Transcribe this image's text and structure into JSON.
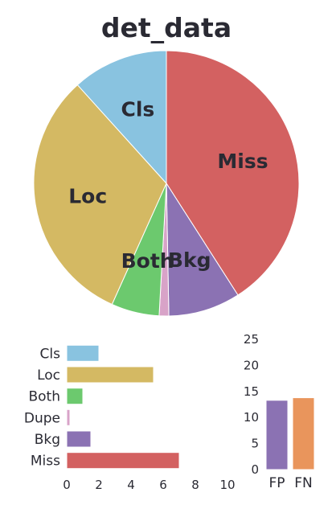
{
  "chart_data": [
    {
      "type": "pie",
      "title": "det_data",
      "categories": [
        "Miss",
        "Bkg",
        "Dupe",
        "Both",
        "Loc",
        "Cls"
      ],
      "values": [
        7.0,
        1.5,
        0.2,
        1.0,
        5.4,
        2.0
      ],
      "colors": [
        "#d36161",
        "#8b72b3",
        "#d8a3c8",
        "#6cc96e",
        "#d4b963",
        "#89c3e0"
      ],
      "slice_labels": [
        "Miss",
        "Bkg",
        "",
        "Both",
        "Loc",
        "Cls"
      ],
      "start_angle_deg": 90,
      "direction": "clockwise"
    },
    {
      "type": "bar",
      "orientation": "horizontal",
      "categories": [
        "Cls",
        "Loc",
        "Both",
        "Dupe",
        "Bkg",
        "Miss"
      ],
      "values": [
        2.0,
        5.4,
        1.0,
        0.2,
        1.5,
        7.0
      ],
      "colors": [
        "#89c3e0",
        "#d4b963",
        "#6cc96e",
        "#d8a3c8",
        "#8b72b3",
        "#d36161"
      ],
      "xlim": [
        0,
        10
      ],
      "xticks": [
        "0",
        "2",
        "4",
        "6",
        "8",
        "10"
      ]
    },
    {
      "type": "bar",
      "orientation": "vertical",
      "categories": [
        "FP",
        "FN"
      ],
      "values": [
        13.3,
        13.8
      ],
      "colors": [
        "#8b72b3",
        "#e9955c"
      ],
      "ylim": [
        0,
        25
      ],
      "yticks": [
        "0",
        "5",
        "10",
        "15",
        "20",
        "25"
      ]
    }
  ]
}
